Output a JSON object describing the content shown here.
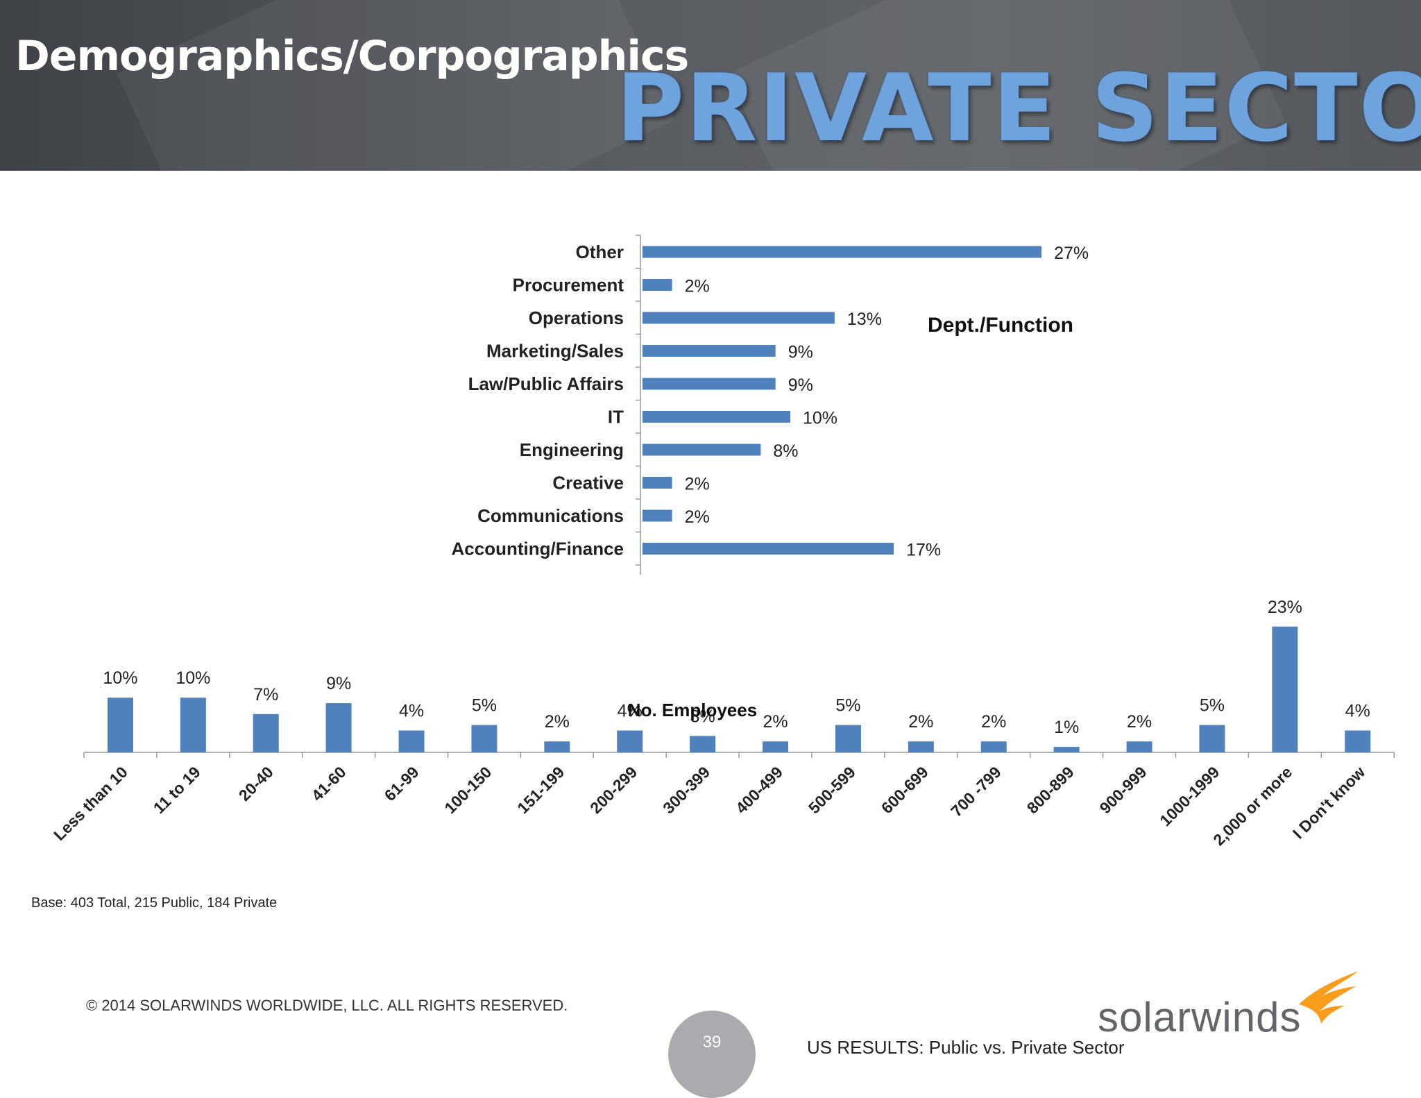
{
  "header": {
    "title": "Demographics/Corpographics",
    "banner": "PRIVATE SECTOR"
  },
  "colors": {
    "bar": "#4f81bd",
    "header_bg": "#55585d",
    "banner": "#6fa3dd",
    "logo_orange": "#f99d1c"
  },
  "chart_data": [
    {
      "type": "bar",
      "orientation": "horizontal",
      "title": "Dept./Function",
      "categories": [
        "Other",
        "Procurement",
        "Operations",
        "Marketing/Sales",
        "Law/Public Affairs",
        "IT",
        "Engineering",
        "Creative",
        "Communications",
        "Accounting/Finance"
      ],
      "values": [
        27,
        2,
        13,
        9,
        9,
        10,
        8,
        2,
        2,
        17
      ],
      "labels": [
        "27%",
        "2%",
        "13%",
        "9%",
        "9%",
        "10%",
        "8%",
        "2%",
        "2%",
        "17%"
      ],
      "unit": "%",
      "grid": false
    },
    {
      "type": "bar",
      "orientation": "vertical",
      "xlabel": "No. Employees",
      "categories": [
        "Less than 10",
        "11 to 19",
        "20-40",
        "41-60",
        "61-99",
        "100-150",
        "151-199",
        "200-299",
        "300-399",
        "400-499",
        "500-599",
        "600-699",
        "700 -799",
        "800-899",
        "900-999",
        "1000-1999",
        "2,000 or more",
        "I Don't know"
      ],
      "values": [
        10,
        10,
        7,
        9,
        4,
        5,
        2,
        4,
        3,
        2,
        5,
        2,
        2,
        1,
        2,
        5,
        23,
        4
      ],
      "labels": [
        "10%",
        "10%",
        "7%",
        "9%",
        "4%",
        "5%",
        "2%",
        "4%",
        "3%",
        "2%",
        "5%",
        "2%",
        "2%",
        "1%",
        "2%",
        "5%",
        "23%",
        "4%"
      ],
      "unit": "%",
      "grid": false
    }
  ],
  "base_note": "Base:  403  Total, 215 Public, 184 Private",
  "footer": {
    "copyright": "© 2014 SOLARWINDS WORLDWIDE, LLC.  ALL RIGHTS RESERVED.",
    "page_number": "39",
    "note": "US RESULTS:  Public vs. Private Sector",
    "logo_text": "solarwinds",
    "logo_icon": "solarwinds-flame-icon"
  }
}
